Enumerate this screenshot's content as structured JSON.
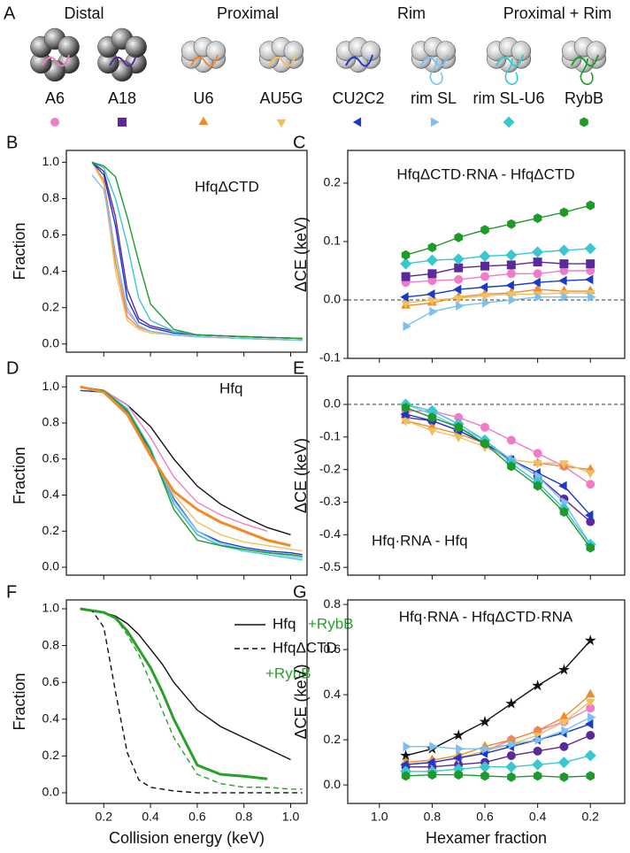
{
  "panel_a": {
    "letter": "A",
    "groups": [
      "Distal",
      "Proximal",
      "Rim",
      "Proximal + Rim"
    ],
    "rnas": [
      {
        "name": "A6",
        "color": "#f07cc8",
        "marker": "circle"
      },
      {
        "name": "A18",
        "color": "#5b2a9a",
        "marker": "square"
      },
      {
        "name": "U6",
        "color": "#f08a2a",
        "marker": "triangle-up"
      },
      {
        "name": "AU5G",
        "color": "#f0c060",
        "marker": "triangle-down"
      },
      {
        "name": "CU2C2",
        "color": "#1a3acc",
        "marker": "triangle-left"
      },
      {
        "name": "rim SL",
        "color": "#7ac0f0",
        "marker": "triangle-right"
      },
      {
        "name": "rim SL-U6",
        "color": "#3ac8d0",
        "marker": "diamond"
      },
      {
        "name": "RybB",
        "color": "#1e9a2a",
        "marker": "hexagon"
      }
    ]
  },
  "chart_data": [
    {
      "type": "line",
      "panel_label": "B",
      "annotation": "HfqΔCTD",
      "ylabel": "Fraction",
      "x": [
        0.15,
        0.2,
        0.25,
        0.3,
        0.35,
        0.4,
        0.5,
        0.6,
        0.8,
        1.05
      ],
      "xlim": [
        0.04,
        1.07
      ],
      "xticks": [
        0.2,
        0.4,
        0.6,
        0.8,
        {
          "value": 1,
          "label": "1.0"
        }
      ],
      "xtick_labels": false,
      "ylim": [
        -0.045,
        1.065
      ],
      "yticks": [
        {
          "value": 0,
          "label": "0.0"
        },
        0.2,
        0.4,
        0.6,
        0.8,
        {
          "value": 1,
          "label": "1.0"
        }
      ],
      "series": [
        {
          "color": "#f07cc8",
          "values": [
            1.0,
            0.9,
            0.5,
            0.18,
            0.1,
            0.07,
            0.05,
            0.04,
            0.03,
            0.02
          ]
        },
        {
          "color": "#5b2a9a",
          "values": [
            1.0,
            0.95,
            0.7,
            0.3,
            0.14,
            0.1,
            0.07,
            0.05,
            0.04,
            0.03
          ]
        },
        {
          "color": "#f08a2a",
          "values": [
            1.0,
            0.9,
            0.45,
            0.15,
            0.09,
            0.07,
            0.05,
            0.04,
            0.03,
            0.02
          ]
        },
        {
          "color": "#f0c060",
          "values": [
            1.0,
            0.88,
            0.4,
            0.13,
            0.08,
            0.06,
            0.05,
            0.04,
            0.03,
            0.02
          ]
        },
        {
          "color": "#1a3acc",
          "values": [
            1.0,
            0.93,
            0.65,
            0.25,
            0.12,
            0.09,
            0.06,
            0.05,
            0.04,
            0.03
          ]
        },
        {
          "color": "#7ac0f0",
          "values": [
            0.93,
            0.85,
            0.5,
            0.2,
            0.1,
            0.07,
            0.05,
            0.04,
            0.03,
            0.02
          ]
        },
        {
          "color": "#3ac8d0",
          "values": [
            1.0,
            0.97,
            0.8,
            0.55,
            0.25,
            0.13,
            0.07,
            0.05,
            0.04,
            0.03
          ]
        },
        {
          "color": "#1e9a2a",
          "values": [
            1.0,
            0.98,
            0.92,
            0.7,
            0.45,
            0.22,
            0.08,
            0.05,
            0.04,
            0.03
          ]
        }
      ]
    },
    {
      "type": "line",
      "panel_label": "C",
      "annotation": "HfqΔCTD·RNA - HfqΔCTD",
      "ylabel": "ΔCE (keV)",
      "markers": true,
      "zero_line": true,
      "x": [
        0.9,
        0.8,
        0.7,
        0.6,
        0.5,
        0.4,
        0.3,
        0.2
      ],
      "xlim": [
        1.12,
        0.07
      ],
      "xticks": [
        {
          "value": 1,
          "label": "1.0"
        },
        0.8,
        0.6,
        0.4,
        0.2
      ],
      "xtick_labels": false,
      "ylim": [
        -0.1,
        0.256
      ],
      "yticks": [
        -0.1,
        {
          "value": 0,
          "label": "0.0"
        },
        0.1,
        0.2
      ],
      "series": [
        {
          "color": "#f07cc8",
          "marker": "circle",
          "values": [
            0.03,
            0.033,
            0.035,
            0.04,
            0.045,
            0.045,
            0.05,
            0.05
          ]
        },
        {
          "color": "#5b2a9a",
          "marker": "square",
          "values": [
            0.04,
            0.045,
            0.055,
            0.058,
            0.06,
            0.065,
            0.062,
            0.062
          ]
        },
        {
          "color": "#f08a2a",
          "marker": "triangle-up",
          "values": [
            -0.01,
            -0.005,
            0.005,
            0.01,
            0.012,
            0.018,
            0.015,
            0.015
          ]
        },
        {
          "color": "#f0c060",
          "marker": "triangle-down",
          "values": [
            -0.005,
            0,
            0.003,
            0.007,
            0.01,
            0.01,
            0.012,
            0.012
          ]
        },
        {
          "color": "#1a3acc",
          "marker": "triangle-left",
          "values": [
            0.005,
            0.01,
            0.018,
            0.022,
            0.025,
            0.03,
            0.033,
            0.035
          ]
        },
        {
          "color": "#7ac0f0",
          "marker": "triangle-right",
          "values": [
            -0.045,
            -0.02,
            -0.01,
            -0.005,
            0,
            0.005,
            0.005,
            0.005
          ]
        },
        {
          "color": "#3ac8d0",
          "marker": "diamond",
          "values": [
            0.062,
            0.068,
            0.07,
            0.075,
            0.077,
            0.082,
            0.085,
            0.088
          ]
        },
        {
          "color": "#1e9a2a",
          "marker": "hexagon",
          "values": [
            0.077,
            0.09,
            0.107,
            0.12,
            0.13,
            0.14,
            0.15,
            0.162
          ]
        }
      ]
    },
    {
      "type": "line",
      "panel_label": "D",
      "annotation": "Hfq",
      "ylabel": "Fraction",
      "x": [
        0.1,
        0.2,
        0.3,
        0.4,
        0.5,
        0.6,
        0.7,
        0.8,
        0.9,
        1.0,
        1.05
      ],
      "xlim": [
        0.04,
        1.07
      ],
      "xticks": [
        0.2,
        0.4,
        0.6,
        0.8,
        {
          "value": 1,
          "label": "1.0"
        }
      ],
      "xtick_labels": false,
      "ylim": [
        -0.044,
        1.06
      ],
      "yticks": [
        {
          "value": 0,
          "label": "0.0"
        },
        0.2,
        0.4,
        0.6,
        0.8,
        {
          "value": 1,
          "label": "1.0"
        }
      ],
      "series": [
        {
          "color": "#111111",
          "values": [
            1.0,
            0.98,
            0.9,
            0.78,
            0.6,
            0.45,
            0.35,
            0.28,
            0.22,
            0.18,
            null
          ]
        },
        {
          "color": "#f07cc8",
          "values": [
            1.0,
            0.98,
            0.9,
            0.72,
            0.5,
            0.36,
            0.29,
            0.24,
            0.2,
            null,
            null
          ]
        },
        {
          "color": "#5b2a9a",
          "values": [
            1.0,
            0.98,
            0.85,
            0.65,
            0.35,
            0.18,
            0.12,
            0.1,
            0.08,
            0.07,
            0.06
          ]
        },
        {
          "color": "#f0c060",
          "values": [
            1.0,
            0.97,
            0.84,
            0.62,
            0.4,
            0.25,
            0.18,
            0.14,
            0.12,
            0.1,
            0.09
          ]
        },
        {
          "color": "#1a3acc",
          "values": [
            0.98,
            0.97,
            0.86,
            0.63,
            0.38,
            0.2,
            0.14,
            0.11,
            0.09,
            0.08,
            0.07
          ]
        },
        {
          "color": "#7ac0f0",
          "values": [
            1.0,
            0.98,
            0.87,
            0.65,
            0.37,
            0.2,
            0.13,
            0.1,
            0.08,
            0.06,
            0.05
          ]
        },
        {
          "color": "#3ac8d0",
          "values": [
            1.0,
            0.98,
            0.88,
            0.66,
            0.35,
            0.18,
            0.12,
            0.09,
            0.07,
            0.05,
            0.04
          ]
        },
        {
          "color": "#1e9a2a",
          "values": [
            1.0,
            0.98,
            0.87,
            0.65,
            0.32,
            0.15,
            0.12,
            0.1,
            0.08,
            0.07,
            0.06
          ]
        },
        {
          "color": "#f08a2a",
          "width": 3,
          "values": [
            1.0,
            0.97,
            0.85,
            0.62,
            0.42,
            0.32,
            0.25,
            0.2,
            0.15,
            0.12,
            null
          ]
        }
      ]
    },
    {
      "type": "line",
      "panel_label": "E",
      "annotation": "Hfq·RNA - Hfq",
      "ylabel": "ΔCE (keV)",
      "markers": true,
      "zero_line": true,
      "x": [
        0.9,
        0.8,
        0.7,
        0.6,
        0.5,
        0.4,
        0.3,
        0.2
      ],
      "xlim": [
        1.12,
        0.07
      ],
      "xticks": [
        {
          "value": 1,
          "label": "1.0"
        },
        0.8,
        0.6,
        0.4,
        0.2
      ],
      "xtick_labels": false,
      "ylim": [
        -0.524,
        0.087
      ],
      "yticks": [
        -0.5,
        -0.4,
        -0.3,
        -0.2,
        -0.1,
        {
          "value": 0,
          "label": "0.0"
        }
      ],
      "series": [
        {
          "color": "#f07cc8",
          "marker": "circle",
          "values": [
            -0.02,
            -0.02,
            -0.04,
            -0.07,
            -0.11,
            -0.15,
            -0.19,
            -0.245
          ]
        },
        {
          "color": "#5b2a9a",
          "marker": "circle",
          "values": [
            -0.04,
            -0.05,
            -0.08,
            -0.12,
            -0.17,
            -0.22,
            -0.29,
            -0.36
          ]
        },
        {
          "color": "#f08a2a",
          "marker": "triangle-up",
          "values": [
            -0.05,
            -0.07,
            -0.09,
            -0.12,
            -0.17,
            -0.18,
            -0.19,
            -0.2
          ]
        },
        {
          "color": "#f0c060",
          "marker": "triangle-down",
          "values": [
            -0.05,
            -0.08,
            -0.1,
            -0.13,
            -0.17,
            -0.18,
            -0.18,
            -0.21
          ]
        },
        {
          "color": "#1a3acc",
          "marker": "triangle-left",
          "values": [
            -0.03,
            -0.05,
            -0.08,
            -0.12,
            -0.17,
            -0.21,
            -0.25,
            -0.34
          ]
        },
        {
          "color": "#7ac0f0",
          "marker": "triangle-right",
          "values": [
            0.0,
            -0.03,
            -0.07,
            -0.11,
            -0.17,
            -0.22,
            -0.3,
            -0.43
          ]
        },
        {
          "color": "#3ac8d0",
          "marker": "diamond",
          "values": [
            0.0,
            -0.02,
            -0.06,
            -0.11,
            -0.18,
            -0.24,
            -0.32,
            -0.43
          ]
        },
        {
          "color": "#1e9a2a",
          "marker": "hexagon",
          "values": [
            -0.01,
            -0.04,
            -0.07,
            -0.12,
            -0.19,
            -0.25,
            -0.33,
            -0.44
          ]
        }
      ]
    },
    {
      "type": "line",
      "panel_label": "F",
      "ylabel": "Fraction",
      "xlabel": "Collision energy (keV)",
      "legend": true,
      "x": [
        0.1,
        0.15,
        0.2,
        0.25,
        0.3,
        0.35,
        0.4,
        0.45,
        0.5,
        0.6,
        0.7,
        0.8,
        0.9,
        1.0,
        1.05
      ],
      "xlim": [
        0.04,
        1.07
      ],
      "xticks": [
        0.2,
        0.4,
        0.6,
        0.8,
        {
          "value": 1,
          "label": "1.0"
        }
      ],
      "xtick_labels": true,
      "ylim": [
        -0.058,
        1.048
      ],
      "yticks": [
        {
          "value": 0,
          "label": "0.0"
        },
        0.2,
        0.4,
        0.6,
        0.8,
        {
          "value": 1,
          "label": "1.0"
        }
      ],
      "series": [
        {
          "name": "Hfq",
          "color": "#111111",
          "values": [
            1.0,
            0.99,
            0.98,
            0.96,
            0.92,
            0.86,
            0.78,
            0.7,
            0.6,
            0.45,
            0.36,
            0.3,
            0.24,
            0.18,
            null
          ]
        },
        {
          "name": "+RybB",
          "color": "#2aa02a",
          "width": 3,
          "values": [
            1.0,
            0.99,
            0.98,
            0.95,
            0.88,
            0.78,
            0.68,
            0.55,
            0.4,
            0.15,
            0.1,
            0.09,
            0.075,
            null,
            null
          ]
        },
        {
          "name": "HfqΔCTD",
          "color": "#111111",
          "dash": true,
          "values": [
            1.0,
            0.99,
            0.9,
            0.55,
            0.22,
            0.07,
            0.03,
            0.02,
            0.01,
            0.0,
            0.0,
            0.0,
            0.0,
            0.0,
            0.0
          ]
        },
        {
          "name": "+RybB",
          "color": "#2aa02a",
          "dash": true,
          "values": [
            1.0,
            0.99,
            0.98,
            0.95,
            0.86,
            0.75,
            0.6,
            0.45,
            0.3,
            0.1,
            0.05,
            0.03,
            0.03,
            0.02,
            0.02
          ]
        }
      ]
    },
    {
      "type": "line",
      "panel_label": "G",
      "annotation": "Hfq·RNA - HfqΔCTD·RNA",
      "ylabel": "ΔCE (keV)",
      "xlabel": "Hexamer fraction",
      "markers": true,
      "x": [
        0.9,
        0.8,
        0.7,
        0.6,
        0.5,
        0.4,
        0.3,
        0.2
      ],
      "xlim": [
        1.12,
        0.07
      ],
      "xticks": [
        {
          "value": 1,
          "label": "1.0"
        },
        0.8,
        0.6,
        0.4,
        0.2
      ],
      "xtick_labels": true,
      "ylim": [
        -0.082,
        0.82
      ],
      "yticks": [
        {
          "value": 0,
          "label": "0.0"
        },
        0.2,
        0.4,
        0.6,
        0.8
      ],
      "series": [
        {
          "color": "#111111",
          "marker": "star",
          "values": [
            0.13,
            0.16,
            0.22,
            0.28,
            0.36,
            0.44,
            0.51,
            0.64
          ]
        },
        {
          "color": "#f07cc8",
          "marker": "circle",
          "values": [
            0.09,
            0.1,
            0.12,
            0.15,
            0.2,
            0.24,
            0.28,
            0.34
          ]
        },
        {
          "color": "#5b2a9a",
          "marker": "circle",
          "values": [
            0.08,
            0.08,
            0.09,
            0.1,
            0.13,
            0.15,
            0.17,
            0.22
          ]
        },
        {
          "color": "#f08a2a",
          "marker": "triangle-up",
          "values": [
            0.1,
            0.11,
            0.13,
            0.17,
            0.2,
            0.24,
            0.3,
            0.4
          ]
        },
        {
          "color": "#f0c060",
          "marker": "triangle-down",
          "values": [
            0.09,
            0.1,
            0.12,
            0.15,
            0.18,
            0.22,
            0.28,
            0.37
          ]
        },
        {
          "color": "#1a3acc",
          "marker": "triangle-left",
          "values": [
            0.09,
            0.1,
            0.12,
            0.14,
            0.17,
            0.2,
            0.23,
            0.27
          ]
        },
        {
          "color": "#7ac0f0",
          "marker": "triangle-right",
          "values": [
            0.17,
            0.17,
            0.16,
            0.16,
            0.18,
            0.2,
            0.24,
            0.3
          ]
        },
        {
          "color": "#3ac8d0",
          "marker": "diamond",
          "values": [
            0.06,
            0.06,
            0.07,
            0.08,
            0.08,
            0.09,
            0.1,
            0.13
          ]
        },
        {
          "color": "#1e9a2a",
          "marker": "hexagon",
          "values": [
            0.04,
            0.045,
            0.045,
            0.04,
            0.035,
            0.04,
            0.035,
            0.04
          ]
        }
      ]
    }
  ]
}
